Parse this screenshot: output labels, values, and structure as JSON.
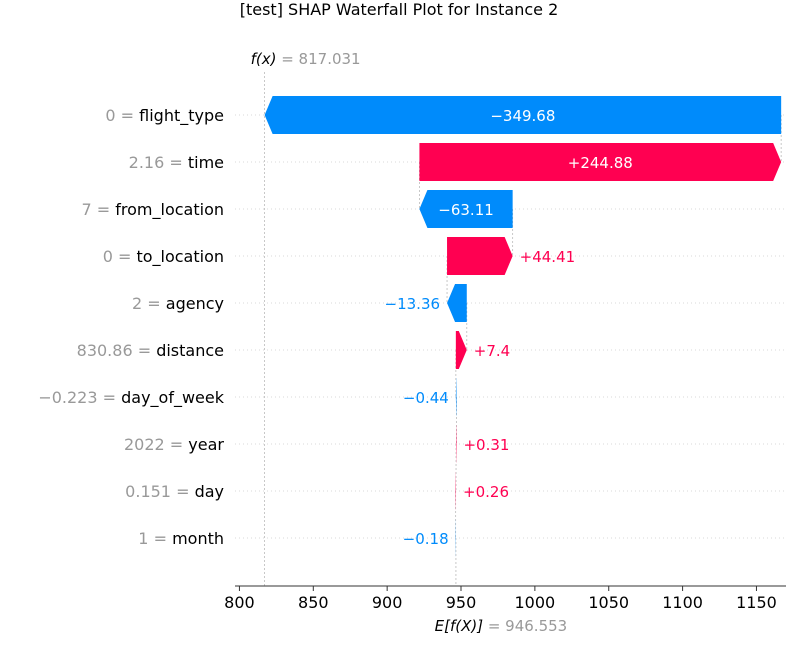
{
  "chart_data": {
    "type": "waterfall",
    "title": "[test] SHAP Waterfall Plot for Instance 2",
    "fx_label": "f(x)",
    "fx_value": "817.031",
    "ex_label": "E[f(X)]",
    "ex_value": "946.553",
    "base_value": 946.553,
    "final_value": 817.031,
    "xlim": [
      797,
      1170
    ],
    "ticks": [
      800,
      850,
      900,
      950,
      1000,
      1050,
      1100,
      1150
    ],
    "features": [
      {
        "value": "0",
        "name": "flight_type",
        "shap": -349.68,
        "label": "−349.68"
      },
      {
        "value": "2.16",
        "name": "time",
        "shap": 244.88,
        "label": "+244.88"
      },
      {
        "value": "7",
        "name": "from_location",
        "shap": -63.11,
        "label": "−63.11"
      },
      {
        "value": "0",
        "name": "to_location",
        "shap": 44.41,
        "label": "+44.41"
      },
      {
        "value": "2",
        "name": "agency",
        "shap": -13.36,
        "label": "−13.36"
      },
      {
        "value": "830.86",
        "name": "distance",
        "shap": 7.4,
        "label": "+7.4"
      },
      {
        "value": "−0.223",
        "name": "day_of_week",
        "shap": -0.44,
        "label": "−0.44"
      },
      {
        "value": "2022",
        "name": "year",
        "shap": 0.31,
        "label": "+0.31"
      },
      {
        "value": "0.151",
        "name": "day",
        "shap": 0.26,
        "label": "+0.26"
      },
      {
        "value": "1",
        "name": "month",
        "shap": -0.18,
        "label": "−0.18"
      }
    ],
    "colors": {
      "positive": "#ff0051",
      "negative": "#008bfb",
      "muted": "#999999",
      "text": "#000000"
    }
  }
}
